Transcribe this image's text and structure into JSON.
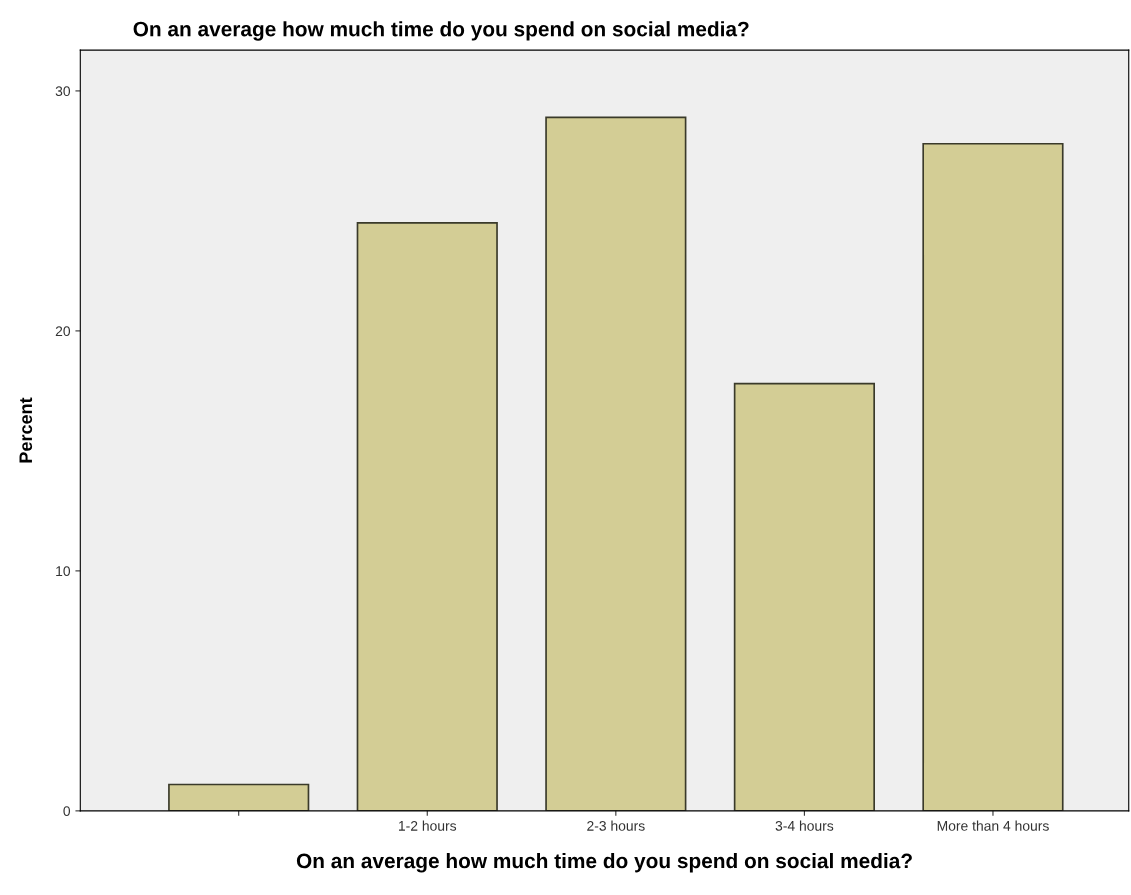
{
  "chart_data": {
    "type": "bar",
    "title": "On an average how much time do you spend on social media?",
    "xlabel": "On an average how much time do you spend on social media?",
    "ylabel": "Percent",
    "categories": [
      null,
      "1-2 hours",
      "2-3 hours",
      "3-4 hours",
      "More than 4 hours"
    ],
    "values": [
      1.1,
      24.5,
      28.9,
      17.8,
      27.8
    ],
    "color": "#d3cd95",
    "ylim": [
      0,
      31.7
    ],
    "yticks": [
      0,
      10,
      20,
      30
    ],
    "grid": false,
    "legend": false
  }
}
